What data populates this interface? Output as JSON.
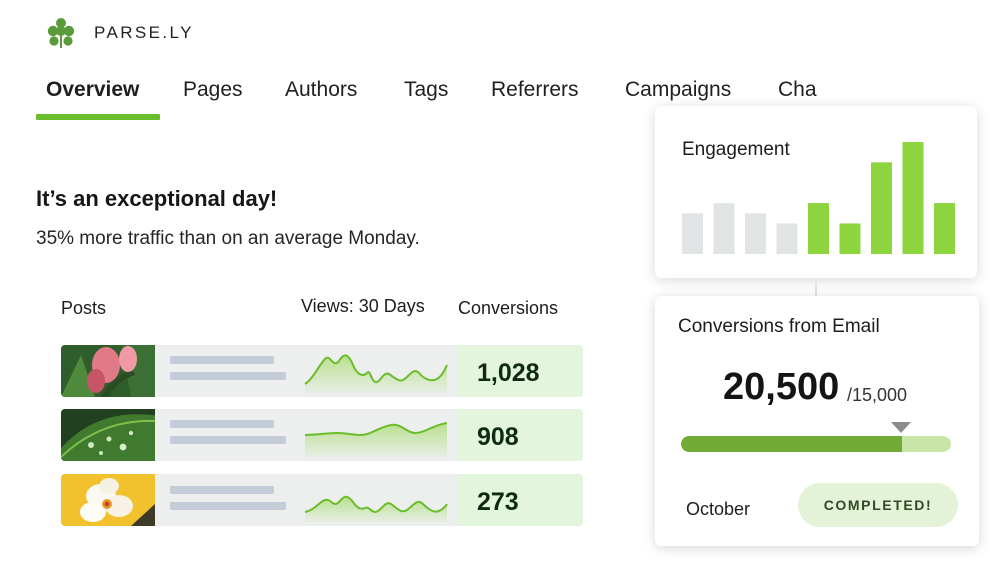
{
  "brand": {
    "name": "PARSE.LY",
    "logo_icon": "parsely-leaf-icon",
    "accent": "#6cbd2b"
  },
  "tabs": [
    {
      "label": "Overview",
      "active": true
    },
    {
      "label": "Pages"
    },
    {
      "label": "Authors"
    },
    {
      "label": "Tags"
    },
    {
      "label": "Referrers"
    },
    {
      "label": "Campaigns"
    },
    {
      "label": "Cha"
    }
  ],
  "summary": {
    "headline": "It’s an exceptional day!",
    "detail": "35% more traffic than on an average Monday."
  },
  "table": {
    "columns": {
      "posts": "Posts",
      "views": "Views: 30 Days",
      "conversions": "Conversions"
    },
    "rows": [
      {
        "thumbnail": "pink-flower-photo",
        "conversions": "1,028"
      },
      {
        "thumbnail": "leaf-water-drops-photo",
        "conversions": "908"
      },
      {
        "thumbnail": "white-orchid-photo",
        "conversions": "273"
      }
    ]
  },
  "engagement_card": {
    "title": "Engagement",
    "chart_data": {
      "type": "bar",
      "values": [
        4,
        5,
        4,
        3,
        5,
        3,
        9,
        11,
        5
      ],
      "highlighted": [
        false,
        false,
        false,
        false,
        true,
        true,
        true,
        true,
        true
      ],
      "colors": {
        "muted": "#e1e4e4",
        "highlight": "#8dd43e"
      }
    }
  },
  "conversions_card": {
    "title": "Conversions from Email",
    "value": "20,500",
    "goal": "/15,000",
    "progress_fraction": 0.82,
    "month": "October",
    "status_badge": "COMPLETED!",
    "colors": {
      "progress_fill": "#72ab38",
      "progress_track": "#c7e6a7"
    }
  }
}
